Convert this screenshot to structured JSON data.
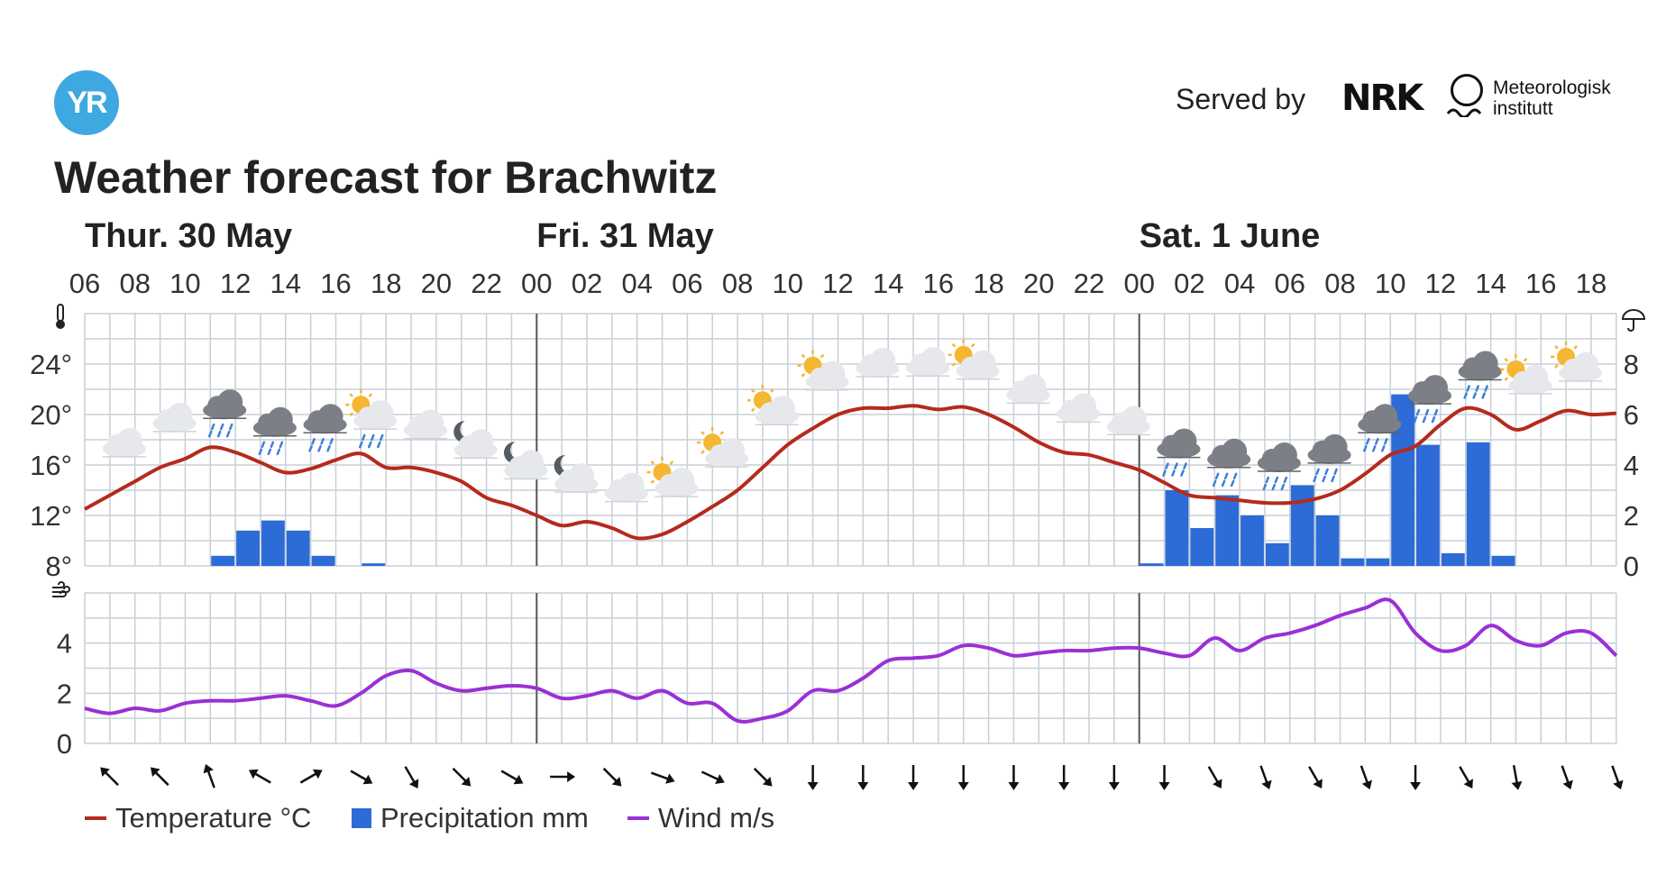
{
  "header": {
    "logo_text": "YR",
    "served_by": "Served by",
    "nrk": "NRK",
    "met_line1": "Meteorologisk",
    "met_line2": "institutt"
  },
  "title": "Weather forecast for Brachwitz",
  "chart_data": {
    "type": "line",
    "days": [
      {
        "label": "Thur. 30 May",
        "start_hour": 0
      },
      {
        "label": "Fri. 31 May",
        "start_hour": 18
      },
      {
        "label": "Sat. 1 June",
        "start_hour": 42
      }
    ],
    "x_tick_labels": [
      "06",
      "08",
      "10",
      "12",
      "14",
      "16",
      "18",
      "20",
      "22",
      "00",
      "02",
      "04",
      "06",
      "08",
      "10",
      "12",
      "14",
      "16",
      "18",
      "20",
      "22",
      "00",
      "02",
      "04",
      "06",
      "08",
      "10",
      "12",
      "14",
      "16",
      "18"
    ],
    "x_hours_range": [
      0,
      61
    ],
    "temperature": {
      "name": "Temperature °C",
      "unit": "°C",
      "color": "#b52a1c",
      "ylim": [
        8,
        28
      ],
      "tick_labels": [
        "8°",
        "12°",
        "16°",
        "20°",
        "24°"
      ],
      "tick_values": [
        8,
        12,
        16,
        20,
        24
      ],
      "points": [
        [
          0,
          12.5
        ],
        [
          1,
          13.6
        ],
        [
          2,
          14.7
        ],
        [
          3,
          15.8
        ],
        [
          4,
          16.5
        ],
        [
          5,
          17.4
        ],
        [
          6,
          17.0
        ],
        [
          7,
          16.2
        ],
        [
          8,
          15.4
        ],
        [
          9,
          15.7
        ],
        [
          10,
          16.4
        ],
        [
          11,
          16.9
        ],
        [
          12,
          15.8
        ],
        [
          13,
          15.8
        ],
        [
          14,
          15.4
        ],
        [
          15,
          14.7
        ],
        [
          16,
          13.4
        ],
        [
          17,
          12.8
        ],
        [
          18,
          12.0
        ],
        [
          19,
          11.2
        ],
        [
          20,
          11.5
        ],
        [
          21,
          11.0
        ],
        [
          22,
          10.2
        ],
        [
          23,
          10.5
        ],
        [
          24,
          11.5
        ],
        [
          25,
          12.7
        ],
        [
          26,
          14.0
        ],
        [
          27,
          15.8
        ],
        [
          28,
          17.6
        ],
        [
          29,
          18.9
        ],
        [
          30,
          20.0
        ],
        [
          31,
          20.5
        ],
        [
          32,
          20.5
        ],
        [
          33,
          20.7
        ],
        [
          34,
          20.4
        ],
        [
          35,
          20.6
        ],
        [
          36,
          20.0
        ],
        [
          37,
          19.0
        ],
        [
          38,
          17.8
        ],
        [
          39,
          17.0
        ],
        [
          40,
          16.8
        ],
        [
          41,
          16.2
        ],
        [
          42,
          15.6
        ],
        [
          43,
          14.6
        ],
        [
          44,
          13.6
        ],
        [
          45,
          13.4
        ],
        [
          46,
          13.2
        ],
        [
          47,
          13.0
        ],
        [
          48,
          13.0
        ],
        [
          49,
          13.3
        ],
        [
          50,
          14.0
        ],
        [
          51,
          15.3
        ],
        [
          52,
          16.8
        ],
        [
          53,
          17.5
        ],
        [
          54,
          19.2
        ],
        [
          55,
          20.5
        ],
        [
          56,
          20.0
        ],
        [
          57,
          18.8
        ],
        [
          58,
          19.5
        ],
        [
          59,
          20.3
        ],
        [
          60,
          20.0
        ],
        [
          61,
          20.1
        ]
      ]
    },
    "precipitation": {
      "name": "Precipitation mm",
      "unit": "mm",
      "color": "#2d6bd6",
      "ylim": [
        0,
        10
      ],
      "tick_labels": [
        "0",
        "2",
        "4",
        "6",
        "8"
      ],
      "tick_values": [
        0,
        2,
        4,
        6,
        8
      ],
      "bars": [
        [
          5,
          0.4
        ],
        [
          6,
          1.4
        ],
        [
          7,
          1.8
        ],
        [
          8,
          1.4
        ],
        [
          9,
          0.4
        ],
        [
          11,
          0.1
        ],
        [
          42,
          0.1
        ],
        [
          43,
          3.0
        ],
        [
          44,
          1.5
        ],
        [
          45,
          2.8
        ],
        [
          46,
          2.0
        ],
        [
          47,
          0.9
        ],
        [
          48,
          3.2
        ],
        [
          49,
          2.0
        ],
        [
          50,
          0.3
        ],
        [
          51,
          0.3
        ],
        [
          52,
          6.8
        ],
        [
          53,
          4.8
        ],
        [
          54,
          0.5
        ],
        [
          55,
          4.9
        ],
        [
          56,
          0.4
        ]
      ]
    },
    "wind": {
      "name": "Wind m/s",
      "unit": "m/s",
      "color": "#9b2fd6",
      "ylim": [
        0,
        6
      ],
      "tick_labels": [
        "0",
        "2",
        "4"
      ],
      "tick_values": [
        0,
        2,
        4
      ],
      "points": [
        [
          0,
          1.4
        ],
        [
          1,
          1.2
        ],
        [
          2,
          1.4
        ],
        [
          3,
          1.3
        ],
        [
          4,
          1.6
        ],
        [
          5,
          1.7
        ],
        [
          6,
          1.7
        ],
        [
          7,
          1.8
        ],
        [
          8,
          1.9
        ],
        [
          9,
          1.7
        ],
        [
          10,
          1.5
        ],
        [
          11,
          2.0
        ],
        [
          12,
          2.7
        ],
        [
          13,
          2.9
        ],
        [
          14,
          2.4
        ],
        [
          15,
          2.1
        ],
        [
          16,
          2.2
        ],
        [
          17,
          2.3
        ],
        [
          18,
          2.2
        ],
        [
          19,
          1.8
        ],
        [
          20,
          1.9
        ],
        [
          21,
          2.1
        ],
        [
          22,
          1.8
        ],
        [
          23,
          2.1
        ],
        [
          24,
          1.6
        ],
        [
          25,
          1.6
        ],
        [
          26,
          0.9
        ],
        [
          27,
          1.0
        ],
        [
          28,
          1.3
        ],
        [
          29,
          2.1
        ],
        [
          30,
          2.1
        ],
        [
          31,
          2.6
        ],
        [
          32,
          3.3
        ],
        [
          33,
          3.4
        ],
        [
          34,
          3.5
        ],
        [
          35,
          3.9
        ],
        [
          36,
          3.8
        ],
        [
          37,
          3.5
        ],
        [
          38,
          3.6
        ],
        [
          39,
          3.7
        ],
        [
          40,
          3.7
        ],
        [
          41,
          3.8
        ],
        [
          42,
          3.8
        ],
        [
          43,
          3.6
        ],
        [
          44,
          3.5
        ],
        [
          45,
          4.2
        ],
        [
          46,
          3.7
        ],
        [
          47,
          4.2
        ],
        [
          48,
          4.4
        ],
        [
          49,
          4.7
        ],
        [
          50,
          5.1
        ],
        [
          51,
          5.4
        ],
        [
          52,
          5.7
        ],
        [
          53,
          4.4
        ],
        [
          54,
          3.7
        ],
        [
          55,
          3.9
        ],
        [
          56,
          4.7
        ],
        [
          57,
          4.1
        ],
        [
          58,
          3.9
        ],
        [
          59,
          4.4
        ],
        [
          60,
          4.4
        ],
        [
          61,
          3.5
        ]
      ]
    },
    "wind_directions_deg": [
      315,
      315,
      340,
      300,
      60,
      120,
      150,
      135,
      120,
      90,
      135,
      110,
      115,
      135,
      180,
      180,
      180,
      180,
      180,
      180,
      180,
      180,
      150,
      160,
      150,
      160,
      180,
      150,
      170,
      160,
      160
    ],
    "symbols": [
      {
        "h": 1,
        "icon": "cloudy"
      },
      {
        "h": 3,
        "icon": "cloudy"
      },
      {
        "h": 5,
        "icon": "rain"
      },
      {
        "h": 7,
        "icon": "rain"
      },
      {
        "h": 9,
        "icon": "rain"
      },
      {
        "h": 11,
        "icon": "partly-cloudy-sun-rain"
      },
      {
        "h": 13,
        "icon": "cloudy"
      },
      {
        "h": 15,
        "icon": "partly-cloudy-moon"
      },
      {
        "h": 17,
        "icon": "partly-cloudy-moon"
      },
      {
        "h": 19,
        "icon": "partly-cloudy-moon"
      },
      {
        "h": 21,
        "icon": "cloudy"
      },
      {
        "h": 23,
        "icon": "partly-cloudy-sun"
      },
      {
        "h": 25,
        "icon": "partly-cloudy-sun"
      },
      {
        "h": 27,
        "icon": "partly-cloudy-sun"
      },
      {
        "h": 29,
        "icon": "partly-cloudy-sun"
      },
      {
        "h": 31,
        "icon": "cloudy"
      },
      {
        "h": 33,
        "icon": "cloudy"
      },
      {
        "h": 35,
        "icon": "partly-cloudy-sun"
      },
      {
        "h": 37,
        "icon": "cloudy"
      },
      {
        "h": 39,
        "icon": "cloudy"
      },
      {
        "h": 41,
        "icon": "cloudy"
      },
      {
        "h": 43,
        "icon": "rain"
      },
      {
        "h": 45,
        "icon": "rain"
      },
      {
        "h": 47,
        "icon": "rain"
      },
      {
        "h": 49,
        "icon": "rain"
      },
      {
        "h": 51,
        "icon": "rain"
      },
      {
        "h": 53,
        "icon": "rain"
      },
      {
        "h": 55,
        "icon": "rain"
      },
      {
        "h": 57,
        "icon": "partly-cloudy-sun"
      },
      {
        "h": 59,
        "icon": "partly-cloudy-sun"
      }
    ],
    "legend_placement": "bottom-left",
    "grid": true
  },
  "colors": {
    "grid": "#c8cfd6",
    "day_divider": "#555555",
    "cloud_light": "#e6e8eb",
    "cloud_dark": "#7c8086",
    "sun": "#f5b632",
    "moon": "#555b63",
    "rain_drop": "#3d7fd9"
  }
}
